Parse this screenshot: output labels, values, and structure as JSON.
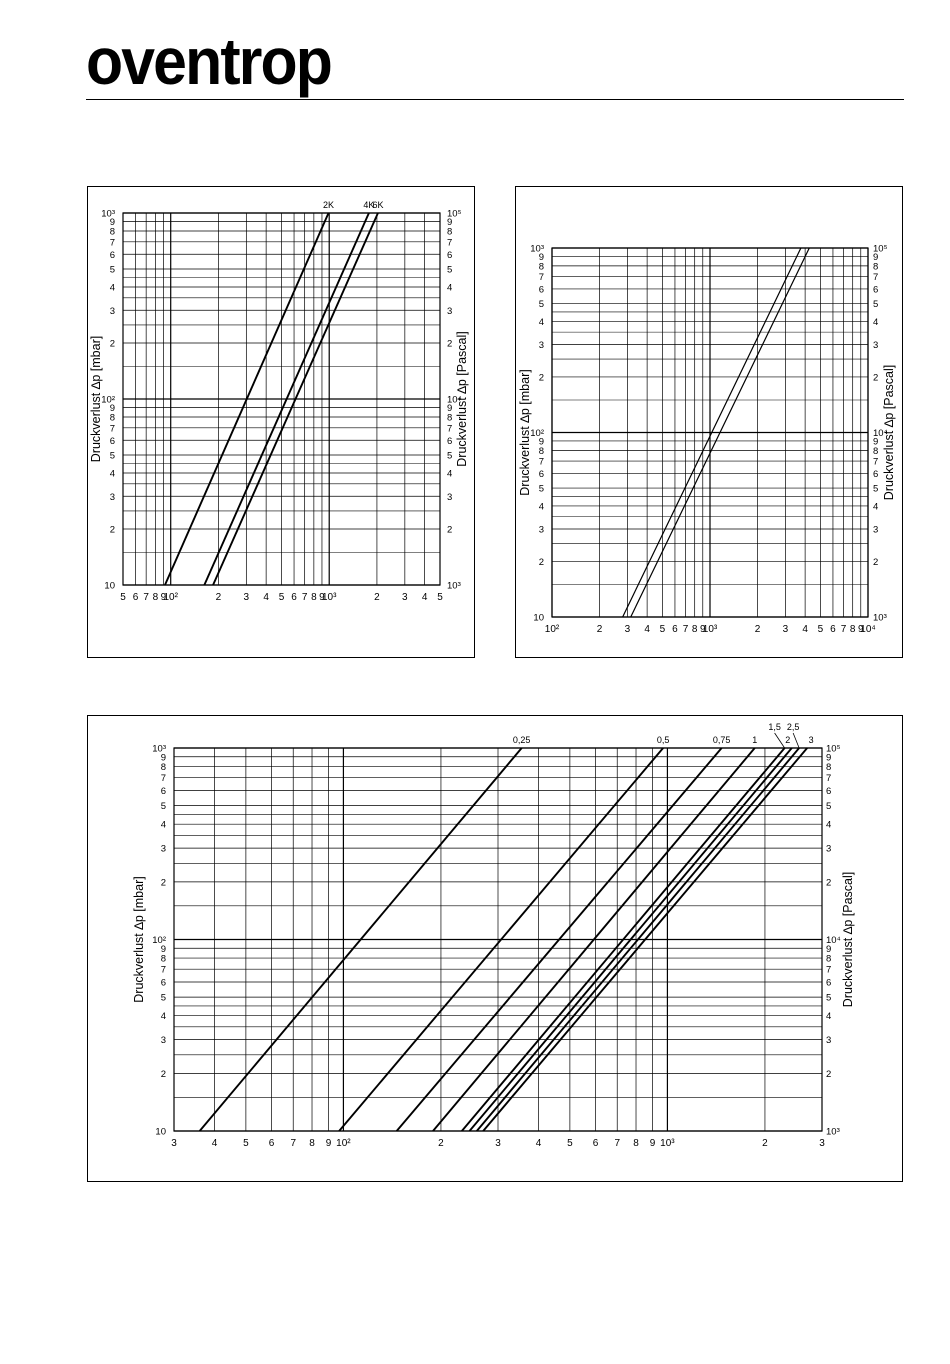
{
  "header": {
    "logo_text": "oventrop"
  },
  "chart_data": [
    {
      "type": "line",
      "xscale": "log",
      "yscale": "log",
      "xlim": [
        50,
        5000
      ],
      "ylim": [
        10,
        1000
      ],
      "ylabel": "Druckverlust ∆p [mbar]",
      "ylabel_right": "Druckverlust ∆p [Pascal]",
      "grid": true,
      "x_tick_labels": [
        "5",
        "6",
        "7",
        "8",
        "9",
        "10²",
        "2",
        "3",
        "4",
        "5",
        "6",
        "7",
        "8",
        "9",
        "10³",
        "2",
        "3",
        "4",
        "5"
      ],
      "y_tick_labels": [
        "10",
        "2",
        "3",
        "4",
        "5",
        "6",
        "7",
        "8",
        "9",
        "10²",
        "2",
        "3",
        "4",
        "5",
        "6",
        "7",
        "8",
        "9",
        "10³"
      ],
      "y_right_tick_labels": [
        "10³",
        "2",
        "3",
        "4",
        "5",
        "6",
        "7",
        "8",
        "9",
        "10⁴",
        "2",
        "3",
        "4",
        "5",
        "6",
        "7",
        "8",
        "9",
        "10⁵"
      ],
      "series": [
        {
          "name": "2K",
          "points": [
            [
              92,
              10
            ],
            [
              990,
              1000
            ]
          ]
        },
        {
          "name": "4K",
          "points": [
            [
              163,
              10
            ],
            [
              1780,
              1000
            ]
          ]
        },
        {
          "name": "6K",
          "points": [
            [
              185,
              10
            ],
            [
              2030,
              1000
            ]
          ]
        }
      ]
    },
    {
      "type": "line",
      "xscale": "log",
      "yscale": "log",
      "xlim": [
        100,
        10000
      ],
      "ylim": [
        10,
        1000
      ],
      "ylabel": "Druckverlust ∆p [mbar]",
      "ylabel_right": "Druckverlust ∆p [Pascal]",
      "grid": true,
      "x_tick_labels": [
        "10²",
        "2",
        "3",
        "4",
        "5",
        "6",
        "7",
        "8",
        "9",
        "10³",
        "2",
        "3",
        "4",
        "5",
        "6",
        "7",
        "8",
        "9",
        "10⁴"
      ],
      "y_tick_labels": [
        "10",
        "2",
        "3",
        "4",
        "5",
        "6",
        "7",
        "8",
        "9",
        "10²",
        "2",
        "3",
        "4",
        "5",
        "6",
        "7",
        "8",
        "9",
        "10³"
      ],
      "y_right_tick_labels": [
        "10³",
        "2",
        "3",
        "4",
        "5",
        "6",
        "7",
        "8",
        "9",
        "10⁴",
        "2",
        "3",
        "4",
        "5",
        "6",
        "7",
        "8",
        "9",
        "10⁵"
      ],
      "series": [
        {
          "name": "",
          "points": [
            [
              280,
              10
            ],
            [
              3760,
              1000
            ]
          ]
        },
        {
          "name": "",
          "points": [
            [
              315,
              10
            ],
            [
              4250,
              1000
            ]
          ]
        }
      ]
    },
    {
      "type": "line",
      "xscale": "log",
      "yscale": "log",
      "xlim": [
        30,
        3000
      ],
      "ylim": [
        10,
        1000
      ],
      "ylabel": "Druckverlust ∆p [mbar]",
      "ylabel_right": "Druckverlust ∆p [Pascal]",
      "grid": true,
      "x_tick_labels": [
        "3",
        "4",
        "5",
        "6",
        "7",
        "8",
        "9",
        "10²",
        "2",
        "3",
        "4",
        "5",
        "6",
        "7",
        "8",
        "9",
        "10³",
        "2",
        "3"
      ],
      "y_tick_labels": [
        "10",
        "2",
        "3",
        "4",
        "5",
        "6",
        "7",
        "8",
        "9",
        "10²",
        "2",
        "3",
        "4",
        "5",
        "6",
        "7",
        "8",
        "9",
        "10³"
      ],
      "y_right_tick_labels": [
        "10³",
        "2",
        "3",
        "4",
        "5",
        "6",
        "7",
        "8",
        "9",
        "10⁴",
        "2",
        "3",
        "4",
        "5",
        "6",
        "7",
        "8",
        "9",
        "10⁵"
      ],
      "series": [
        {
          "name": "0,25",
          "points": [
            [
              36,
              10
            ],
            [
              355,
              1000
            ]
          ]
        },
        {
          "name": "0,5",
          "points": [
            [
              97,
              10
            ],
            [
              970,
              1000
            ]
          ]
        },
        {
          "name": "0,75",
          "points": [
            [
              146,
              10
            ],
            [
              1470,
              1000
            ]
          ]
        },
        {
          "name": "1",
          "points": [
            [
              189,
              10
            ],
            [
              1860,
              1000
            ]
          ]
        },
        {
          "name": "1,5",
          "points": [
            [
              232,
              10
            ],
            [
              2300,
              1000
            ]
          ]
        },
        {
          "name": "2",
          "points": [
            [
              245,
              10
            ],
            [
              2420,
              1000
            ]
          ]
        },
        {
          "name": "2,5",
          "points": [
            [
              258,
              10
            ],
            [
              2550,
              1000
            ]
          ]
        },
        {
          "name": "3",
          "points": [
            [
              270,
              10
            ],
            [
              2700,
              1000
            ]
          ]
        }
      ]
    }
  ]
}
